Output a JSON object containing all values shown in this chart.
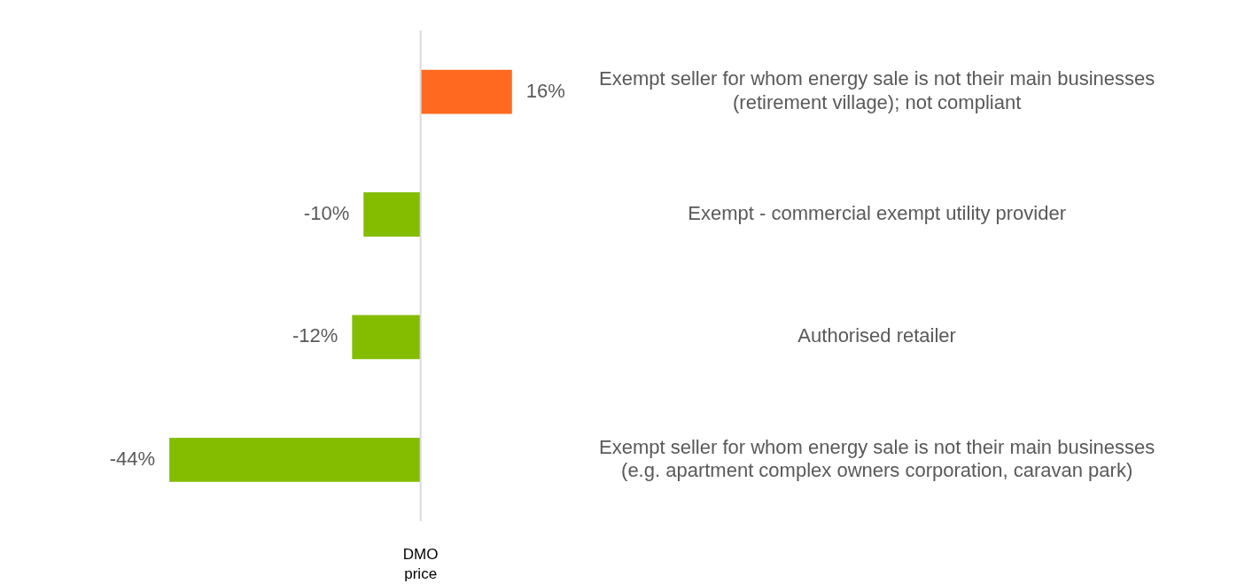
{
  "chart_data": {
    "type": "bar",
    "orientation": "horizontal",
    "categories": [
      "Exempt seller for whom energy sale is not their main businesses (retirement village); not compliant",
      "Exempt - commercial exempt utility provider",
      "Authorised retailer",
      "Exempt seller for whom energy sale is not their main businesses (e.g. apartment complex owners corporation, caravan park)"
    ],
    "values": [
      16,
      -10,
      -12,
      -44
    ],
    "colors": [
      "#ff6a20",
      "#84bd00",
      "#84bd00",
      "#84bd00"
    ],
    "value_labels": [
      "16%",
      "-10%",
      "-12%",
      "-44%"
    ],
    "tick_labels": "y",
    "legend": false,
    "ref_lines": [
      {
        "axis": "x",
        "value": 0,
        "label": "DMO price",
        "color": "#d9d9d9"
      }
    ]
  }
}
